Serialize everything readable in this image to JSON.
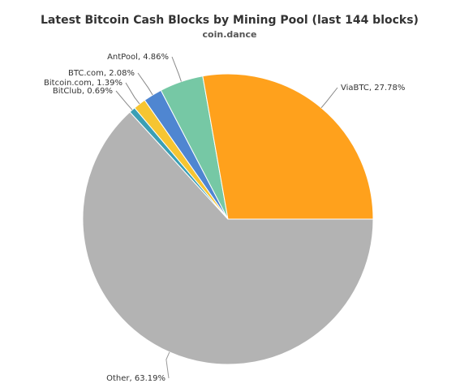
{
  "chart_data": {
    "type": "pie",
    "title": "Latest Bitcoin Cash Blocks by Mining Pool (last 144 blocks)",
    "subtitle": "coin.dance",
    "values": [
      63.19,
      0.69,
      1.39,
      2.08,
      4.86,
      27.78
    ],
    "value_labels": [
      "Other, 63.19%",
      "BitClub, 0.69%",
      "Bitcoin.com, 1.39%",
      "BTC.com, 2.08%",
      "AntPool, 4.86%",
      "ViaBTC, 27.78%"
    ],
    "colors": [
      "#b3b3b3",
      "#3a9fb5",
      "#f6c532",
      "#4f86d1",
      "#76c8a5",
      "#ffa11c"
    ]
  }
}
